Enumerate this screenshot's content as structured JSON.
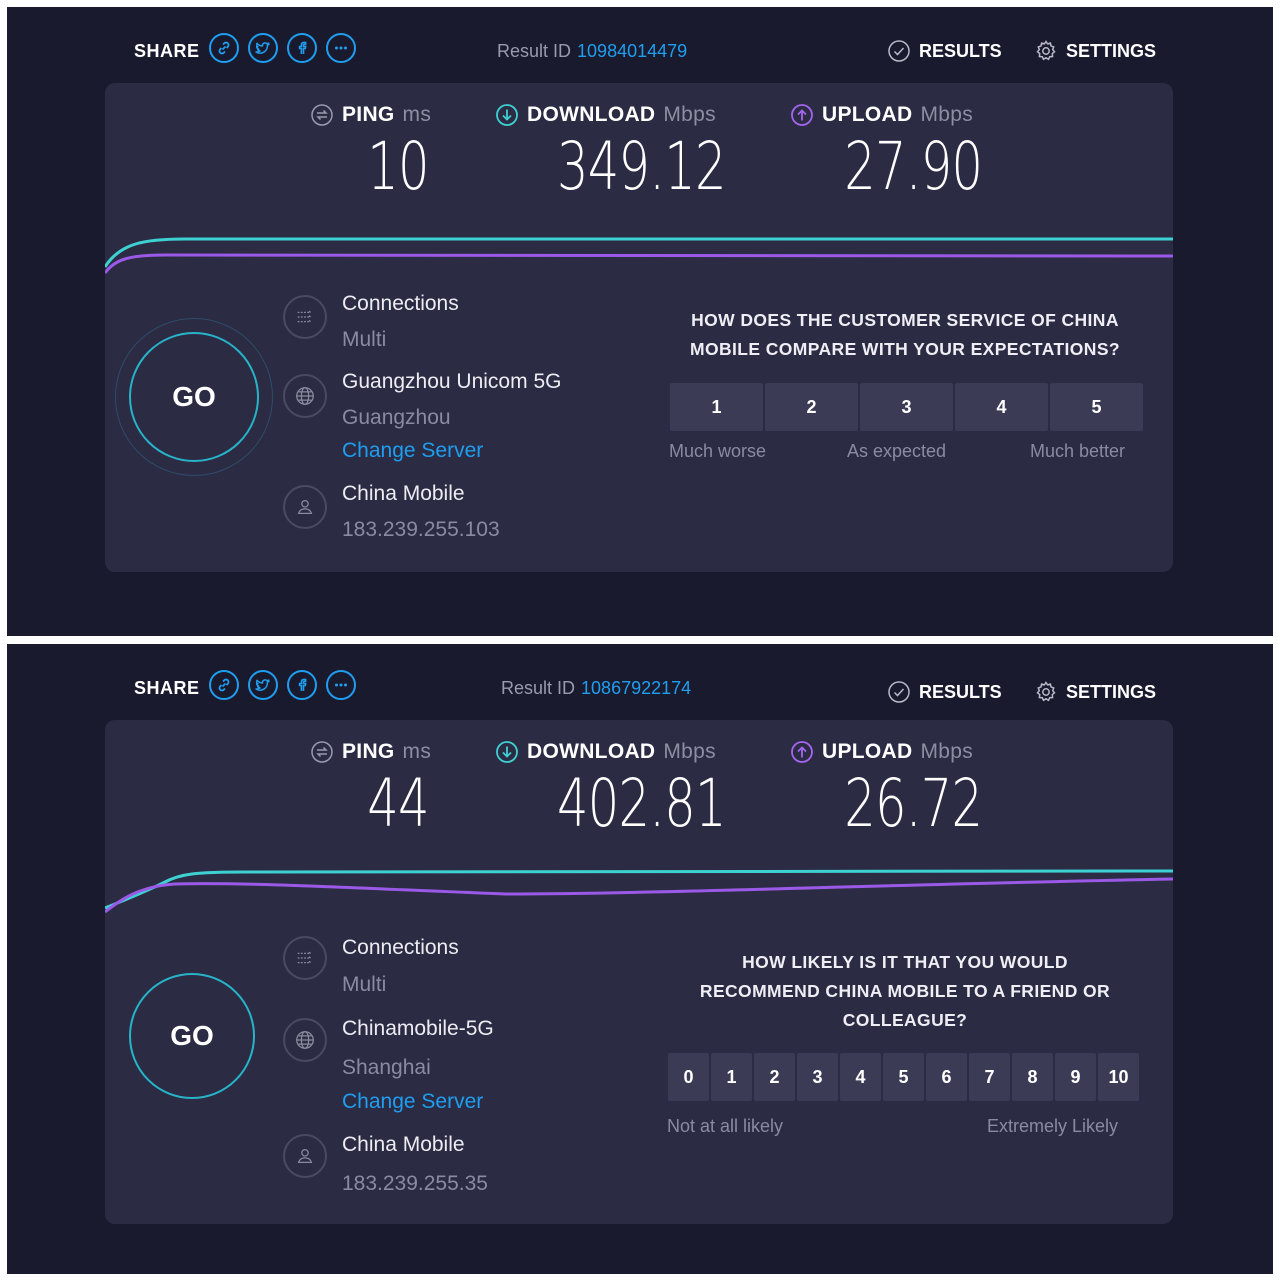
{
  "panels": [
    {
      "share_label": "SHARE",
      "share_icons": [
        "link-icon",
        "twitter-icon",
        "facebook-icon",
        "more-icon"
      ],
      "result_id_label": "Result ID",
      "result_id": "10984014479",
      "results_label": "RESULTS",
      "settings_label": "SETTINGS",
      "ping": {
        "label": "PING",
        "unit": "ms",
        "value": "10"
      },
      "download": {
        "label": "DOWNLOAD",
        "unit": "Mbps",
        "value": "349.12"
      },
      "upload": {
        "label": "UPLOAD",
        "unit": "Mbps",
        "value": "27.90"
      },
      "go_label": "GO",
      "connections": {
        "title": "Connections",
        "value": "Multi"
      },
      "server": {
        "name": "Guangzhou Unicom 5G",
        "location": "Guangzhou",
        "change_label": "Change Server"
      },
      "provider": {
        "name": "China Mobile",
        "ip": "183.239.255.103"
      },
      "survey": {
        "question_lines": [
          "HOW DOES THE CUSTOMER SERVICE OF CHINA",
          "MOBILE COMPARE WITH YOUR EXPECTATIONS?"
        ],
        "options": [
          "1",
          "2",
          "3",
          "4",
          "5"
        ],
        "labels": [
          "Much worse",
          "As expected",
          "Much better"
        ]
      }
    },
    {
      "share_label": "SHARE",
      "share_icons": [
        "link-icon",
        "twitter-icon",
        "facebook-icon",
        "more-icon"
      ],
      "result_id_label": "Result ID",
      "result_id": "10867922174",
      "results_label": "RESULTS",
      "settings_label": "SETTINGS",
      "ping": {
        "label": "PING",
        "unit": "ms",
        "value": "44"
      },
      "download": {
        "label": "DOWNLOAD",
        "unit": "Mbps",
        "value": "402.81"
      },
      "upload": {
        "label": "UPLOAD",
        "unit": "Mbps",
        "value": "26.72"
      },
      "go_label": "GO",
      "connections": {
        "title": "Connections",
        "value": "Multi"
      },
      "server": {
        "name": "Chinamobile-5G",
        "location": "Shanghai",
        "change_label": "Change Server"
      },
      "provider": {
        "name": "China Mobile",
        "ip": "183.239.255.35"
      },
      "survey": {
        "question_lines": [
          "HOW LIKELY IS IT THAT YOU WOULD",
          "RECOMMEND CHINA MOBILE TO A FRIEND OR",
          "COLLEAGUE?"
        ],
        "options": [
          "0",
          "1",
          "2",
          "3",
          "4",
          "5",
          "6",
          "7",
          "8",
          "9",
          "10"
        ],
        "labels": [
          "Not at all likely",
          "Extremely Likely"
        ]
      }
    }
  ],
  "colors": {
    "background": "#1a1a2e",
    "card": "#2b2b43",
    "accent_blue": "#1f9ef0",
    "download_line": "#3ed1d1",
    "upload_line": "#9b59e8"
  }
}
